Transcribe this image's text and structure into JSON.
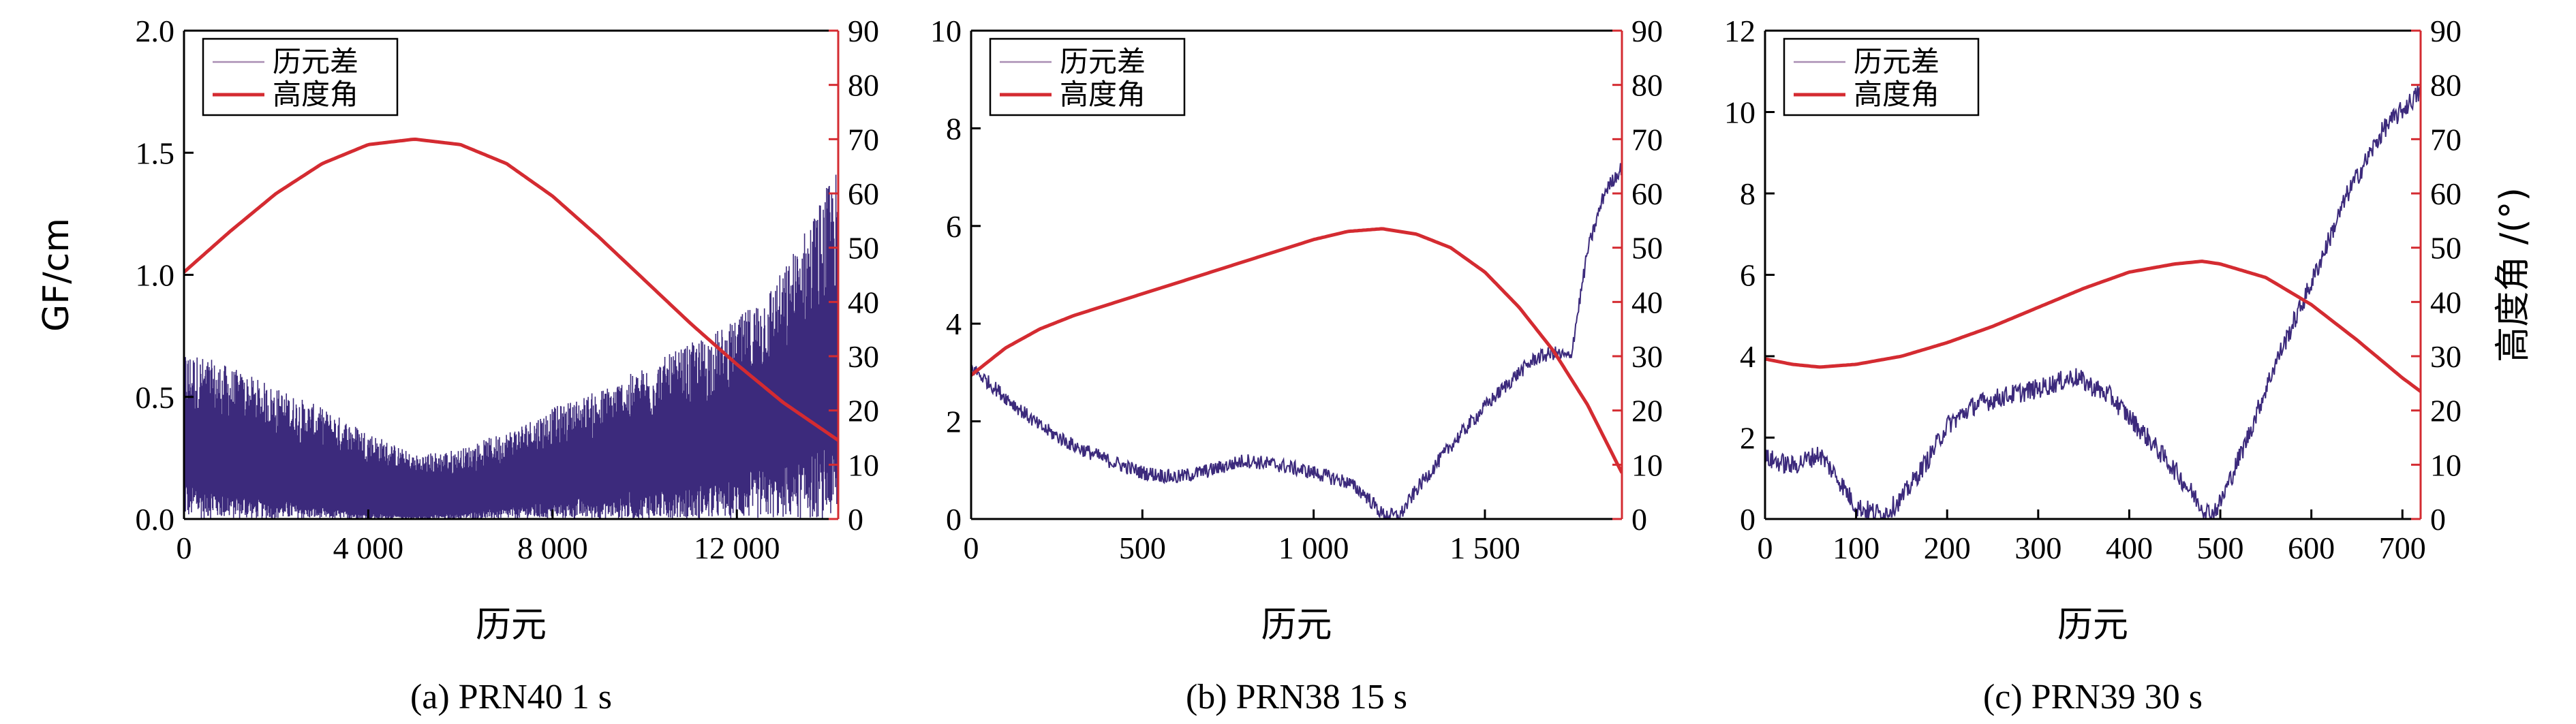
{
  "chart_data": [
    {
      "type": "line",
      "caption": "(a) PRN40 1 s",
      "xlabel": "历元",
      "ylabel": "GF/cm",
      "y2label": "",
      "xlim": [
        0,
        14200
      ],
      "ylim": [
        0,
        2.0
      ],
      "y2lim": [
        0,
        90
      ],
      "xticks": [
        0,
        4000,
        8000,
        12000
      ],
      "xtick_labels": [
        "0",
        "4 000",
        "8 000",
        "12 000"
      ],
      "yticks": [
        0,
        0.5,
        1.0,
        1.5,
        2.0
      ],
      "ytick_labels": [
        "0.0",
        "0.5",
        "1.0",
        "1.5",
        "2.0"
      ],
      "y2ticks": [
        0,
        10,
        20,
        30,
        40,
        50,
        60,
        70,
        80,
        90
      ],
      "y2tick_labels": [
        "0",
        "10",
        "20",
        "30",
        "40",
        "50",
        "60",
        "70",
        "80",
        "90"
      ],
      "legend": [
        "历元差",
        "高度角"
      ],
      "series": [
        {
          "name": "历元差",
          "axis": "left",
          "style": "noise_band",
          "x": [
            0,
            1000,
            2000,
            3000,
            4000,
            5000,
            6000,
            7000,
            8000,
            9000,
            10000,
            11000,
            12000,
            13000,
            14000,
            14200
          ],
          "upper": [
            0.58,
            0.52,
            0.45,
            0.38,
            0.3,
            0.22,
            0.24,
            0.3,
            0.38,
            0.44,
            0.52,
            0.6,
            0.68,
            0.85,
            1.15,
            1.2
          ],
          "lower": [
            0.15,
            0.1,
            0.07,
            0.04,
            0.02,
            0.01,
            0.02,
            0.04,
            0.06,
            0.08,
            0.1,
            0.12,
            0.15,
            0.2,
            0.25,
            0.25
          ]
        },
        {
          "name": "高度角",
          "axis": "right",
          "x": [
            0,
            1000,
            2000,
            3000,
            4000,
            5000,
            6000,
            7000,
            8000,
            9000,
            10000,
            11000,
            12000,
            13000,
            14200
          ],
          "values": [
            45.5,
            53,
            60,
            65.5,
            69,
            70,
            69,
            65.5,
            59.5,
            52,
            44,
            36,
            28.5,
            21.5,
            14.5
          ]
        }
      ]
    },
    {
      "type": "line",
      "caption": "(b) PRN38 15 s",
      "xlabel": "历元",
      "ylabel": "",
      "y2label": "",
      "xlim": [
        0,
        1900
      ],
      "ylim": [
        0,
        10
      ],
      "y2lim": [
        0,
        90
      ],
      "xticks": [
        0,
        500,
        1000,
        1500
      ],
      "xtick_labels": [
        "0",
        "500",
        "1 000",
        "1 500"
      ],
      "yticks": [
        0,
        2,
        4,
        6,
        8,
        10
      ],
      "ytick_labels": [
        "0",
        "2",
        "4",
        "6",
        "8",
        "10"
      ],
      "y2ticks": [
        0,
        10,
        20,
        30,
        40,
        50,
        60,
        70,
        80,
        90
      ],
      "y2tick_labels": [
        "0",
        "10",
        "20",
        "30",
        "40",
        "50",
        "60",
        "70",
        "80",
        "90"
      ],
      "legend": [
        "历元差",
        "高度角"
      ],
      "series": [
        {
          "name": "历元差",
          "axis": "left",
          "style": "noisy_line",
          "x": [
            0,
            100,
            200,
            300,
            400,
            500,
            600,
            700,
            800,
            900,
            1000,
            1100,
            1150,
            1200,
            1250,
            1300,
            1400,
            1500,
            1600,
            1650,
            1700,
            1750,
            1800,
            1850,
            1900
          ],
          "values": [
            3.1,
            2.5,
            1.9,
            1.5,
            1.2,
            0.95,
            0.85,
            1.0,
            1.2,
            1.1,
            0.95,
            0.75,
            0.5,
            0.1,
            0.05,
            0.6,
            1.5,
            2.3,
            3.0,
            3.3,
            3.4,
            3.3,
            5.5,
            6.7,
            7.2
          ],
          "noise": 0.15
        },
        {
          "name": "高度角",
          "axis": "right",
          "x": [
            0,
            100,
            200,
            300,
            400,
            500,
            600,
            700,
            800,
            900,
            1000,
            1100,
            1200,
            1300,
            1400,
            1500,
            1600,
            1700,
            1800,
            1900
          ],
          "values": [
            26.5,
            31.5,
            35,
            37.5,
            39.5,
            41.5,
            43.5,
            45.5,
            47.5,
            49.5,
            51.5,
            53,
            53.5,
            52.5,
            50,
            45.5,
            39,
            31,
            21,
            8.5
          ]
        }
      ]
    },
    {
      "type": "line",
      "caption": "(c) PRN39 30 s",
      "xlabel": "历元",
      "ylabel": "",
      "y2label": "高度角 /(°)",
      "xlim": [
        0,
        720
      ],
      "ylim": [
        0,
        12
      ],
      "y2lim": [
        0,
        90
      ],
      "xticks": [
        0,
        100,
        200,
        300,
        400,
        500,
        600,
        700
      ],
      "xtick_labels": [
        "0",
        "100",
        "200",
        "300",
        "400",
        "500",
        "600",
        "700"
      ],
      "yticks": [
        0,
        2,
        4,
        6,
        8,
        10,
        12
      ],
      "ytick_labels": [
        "0",
        "2",
        "4",
        "6",
        "8",
        "10",
        "12"
      ],
      "y2ticks": [
        0,
        10,
        20,
        30,
        40,
        50,
        60,
        70,
        80,
        90
      ],
      "y2tick_labels": [
        "0",
        "10",
        "20",
        "30",
        "40",
        "50",
        "60",
        "70",
        "80",
        "90"
      ],
      "legend": [
        "历元差",
        "高度角"
      ],
      "series": [
        {
          "name": "历元差",
          "axis": "left",
          "style": "noisy_line",
          "x": [
            0,
            30,
            60,
            80,
            100,
            130,
            150,
            180,
            200,
            230,
            260,
            300,
            340,
            380,
            420,
            450,
            480,
            490,
            500,
            530,
            560,
            600,
            640,
            680,
            720
          ],
          "values": [
            1.5,
            1.3,
            1.6,
            1.0,
            0.3,
            0.1,
            0.5,
            1.5,
            2.3,
            2.8,
            3.0,
            3.2,
            3.5,
            3.0,
            2.0,
            1.2,
            0.3,
            0.1,
            0.4,
            2.0,
            3.8,
            5.8,
            8.0,
            9.6,
            10.5
          ],
          "noise": 0.25
        },
        {
          "name": "高度角",
          "axis": "right",
          "x": [
            0,
            30,
            60,
            100,
            150,
            200,
            250,
            300,
            350,
            400,
            450,
            480,
            500,
            550,
            600,
            650,
            700,
            720
          ],
          "values": [
            29.5,
            28.5,
            28,
            28.5,
            30,
            32.5,
            35.5,
            39,
            42.5,
            45.5,
            47,
            47.5,
            47,
            44.5,
            39.5,
            33,
            26,
            23.5
          ]
        }
      ]
    }
  ]
}
